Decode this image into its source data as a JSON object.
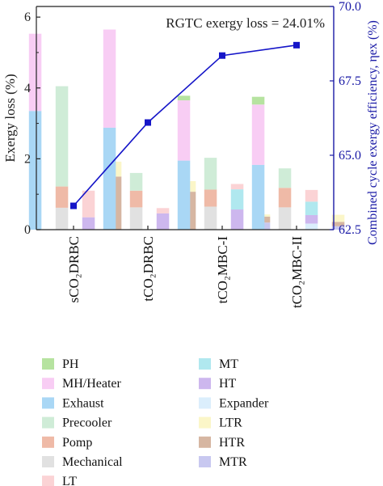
{
  "chart_data": {
    "type": "bar",
    "annotation": "RGTC exergy loss = 24.01%",
    "categories": [
      "sCO₂DRBC",
      "tCO₂DRBC",
      "tCO₂MBC-I",
      "tCO₂MBC-II"
    ],
    "ylabel": "Exergy loss (%)",
    "ylim": [
      0,
      6.3
    ],
    "yticks": [
      0,
      2,
      4,
      6
    ],
    "y2label": "Combined cycle exergy efficiency, ηex (%)",
    "y2lim": [
      62.5,
      70.0
    ],
    "y2ticks": [
      "62.5",
      "65.0",
      "67.5",
      "70.0"
    ],
    "legend_placement": "bottom, two columns",
    "components": [
      {
        "name": "PH",
        "color": "#b6e3a0"
      },
      {
        "name": "MH/Heater",
        "color": "#f8cdf4"
      },
      {
        "name": "Exhaust",
        "color": "#a9d7f5"
      },
      {
        "name": "Precooler",
        "color": "#cfecd7"
      },
      {
        "name": "Pomp",
        "color": "#efbaa7"
      },
      {
        "name": "Mechanical",
        "color": "#e1e1e1"
      },
      {
        "name": "LT",
        "color": "#fbd3d5"
      },
      {
        "name": "MT",
        "color": "#b0e8ef"
      },
      {
        "name": "HT",
        "color": "#cdb7ee"
      },
      {
        "name": "Expander",
        "color": "#dbeefc"
      },
      {
        "name": "LTR",
        "color": "#fbf6c8"
      },
      {
        "name": "HTR",
        "color": "#d6b6a2"
      },
      {
        "name": "MTR",
        "color": "#c8c8f0"
      }
    ],
    "stacks": [
      [
        {
          "col": 0,
          "segments": [
            {
              "c": "Exhaust",
              "v": 3.35
            },
            {
              "c": "MH/Heater",
              "v": 2.18
            }
          ]
        },
        {
          "col": 1,
          "segments": [
            {
              "c": "Mechanical",
              "v": 0.62
            },
            {
              "c": "Pomp",
              "v": 0.6
            },
            {
              "c": "Precooler",
              "v": 2.83
            }
          ]
        },
        {
          "col": 2,
          "segments": [
            {
              "c": "HT",
              "v": 0.35
            },
            {
              "c": "LT",
              "v": 0.75
            }
          ]
        },
        {
          "col": 3,
          "segments": [
            {
              "c": "HTR",
              "v": 1.5
            },
            {
              "c": "LTR",
              "v": 0.42
            }
          ]
        }
      ],
      [
        {
          "col": 0,
          "segments": [
            {
              "c": "Exhaust",
              "v": 2.88
            },
            {
              "c": "MH/Heater",
              "v": 2.77
            }
          ]
        },
        {
          "col": 1,
          "segments": [
            {
              "c": "Mechanical",
              "v": 0.63
            },
            {
              "c": "Pomp",
              "v": 0.47
            },
            {
              "c": "Precooler",
              "v": 0.5
            }
          ]
        },
        {
          "col": 2,
          "segments": [
            {
              "c": "HT",
              "v": 0.46
            },
            {
              "c": "LT",
              "v": 0.15
            }
          ]
        },
        {
          "col": 3,
          "segments": [
            {
              "c": "HTR",
              "v": 1.07
            },
            {
              "c": "LTR",
              "v": 0.3
            }
          ]
        }
      ],
      [
        {
          "col": 0,
          "segments": [
            {
              "c": "Exhaust",
              "v": 1.95
            },
            {
              "c": "MH/Heater",
              "v": 1.7
            },
            {
              "c": "PH",
              "v": 0.13
            }
          ]
        },
        {
          "col": 1,
          "segments": [
            {
              "c": "Mechanical",
              "v": 0.65
            },
            {
              "c": "Pomp",
              "v": 0.48
            },
            {
              "c": "Precooler",
              "v": 0.9
            }
          ]
        },
        {
          "col": 2,
          "segments": [
            {
              "c": "HT",
              "v": 0.57
            },
            {
              "c": "MT",
              "v": 0.57
            },
            {
              "c": "LT",
              "v": 0.15
            }
          ]
        },
        {
          "col": 3,
          "segments": [
            {
              "c": "MTR",
              "v": 0.2
            },
            {
              "c": "HTR",
              "v": 0.17
            },
            {
              "c": "LTR",
              "v": 0.06
            }
          ]
        }
      ],
      [
        {
          "col": 0,
          "segments": [
            {
              "c": "Exhaust",
              "v": 1.83
            },
            {
              "c": "MH/Heater",
              "v": 1.7
            },
            {
              "c": "PH",
              "v": 0.22
            }
          ]
        },
        {
          "col": 1,
          "segments": [
            {
              "c": "Mechanical",
              "v": 0.63
            },
            {
              "c": "Pomp",
              "v": 0.55
            },
            {
              "c": "Precooler",
              "v": 0.55
            }
          ]
        },
        {
          "col": 2,
          "segments": [
            {
              "c": "Expander",
              "v": 0.17
            },
            {
              "c": "HT",
              "v": 0.24
            },
            {
              "c": "MT",
              "v": 0.38
            },
            {
              "c": "LT",
              "v": 0.33
            }
          ]
        },
        {
          "col": 3,
          "segments": [
            {
              "c": "MTR",
              "v": 0.1
            },
            {
              "c": "HTR",
              "v": 0.12
            },
            {
              "c": "LTR",
              "v": 0.2
            }
          ]
        }
      ]
    ],
    "efficiency_series": {
      "color": "#1515c8",
      "values": [
        63.3,
        66.1,
        68.35,
        68.7
      ]
    }
  }
}
